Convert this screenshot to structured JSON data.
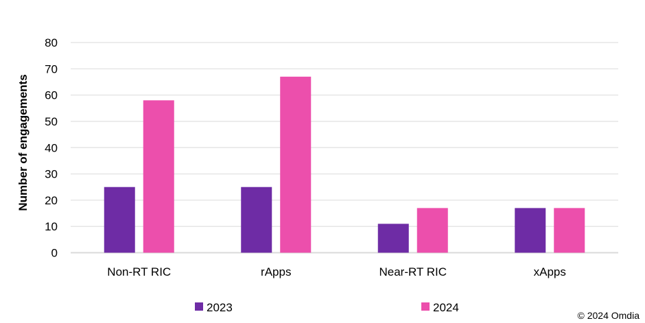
{
  "chart_data": {
    "type": "bar",
    "title": "",
    "xlabel": "",
    "ylabel": "Number of engagements",
    "ylim": [
      0,
      80
    ],
    "yticks": [
      0,
      10,
      20,
      30,
      40,
      50,
      60,
      70,
      80
    ],
    "grid": true,
    "legend_position": "bottom",
    "categories": [
      "Non-RT RIC",
      "rApps",
      "Near-RT RIC",
      "xApps"
    ],
    "series": [
      {
        "name": "2023",
        "color": "#6E2CA5",
        "values": [
          25,
          25,
          11,
          17
        ]
      },
      {
        "name": "2024",
        "color": "#EC4FAC",
        "values": [
          58,
          67,
          17,
          17
        ]
      }
    ]
  },
  "copyright": "© 2024 Omdia"
}
